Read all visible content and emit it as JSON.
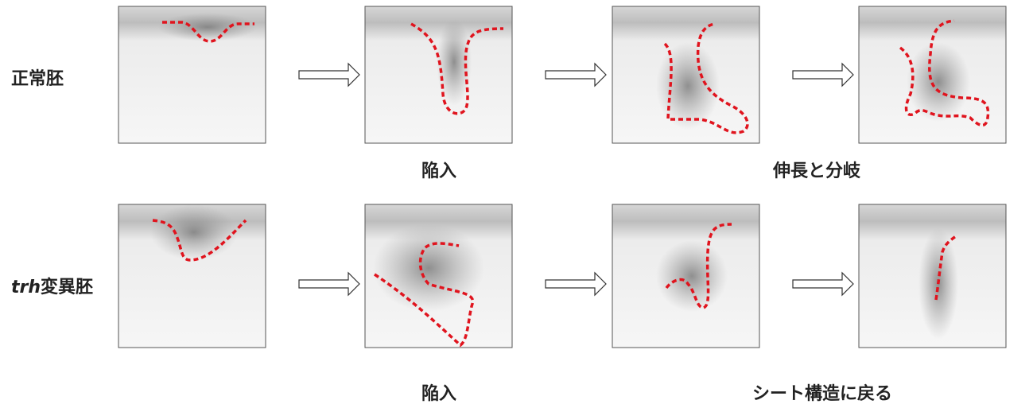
{
  "rows": [
    {
      "label": "正常胚",
      "captions": [
        "陥入",
        "伸長と分岐"
      ]
    },
    {
      "label_italic": "trh",
      "label": "変異胚",
      "captions": [
        "陥入",
        "シート構造に戻る"
      ]
    }
  ]
}
